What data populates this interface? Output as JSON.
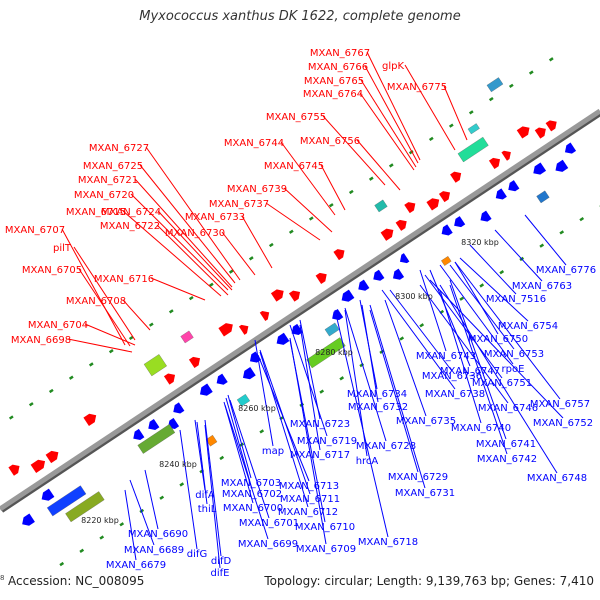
{
  "title": "Myxococcus xanthus DK 1622, complete genome",
  "footer": {
    "edge_mark": "8",
    "accession": "Accession: NC_008095",
    "summary": "Topology: circular; Length: 9,139,763 bp; Genes: 7,410"
  },
  "colors": {
    "forward_strand": "#ff0000",
    "reverse_strand": "#0000ff",
    "backbone": "#999999",
    "tick": "#228b22"
  },
  "scale_labels": [
    "8220 kbp",
    "8240 kbp",
    "8260 kbp",
    "8280 kbp",
    "8300 kbp",
    "8320 kbp"
  ],
  "forward_genes": [
    "MXAN_6767",
    "MXAN_6766",
    "MXAN_6765",
    "MXAN_6764",
    "glpK",
    "MXAN_6775",
    "MXAN_6755",
    "MXAN_6744",
    "MXAN_6756",
    "MXAN_6745",
    "MXAN_6727",
    "MXAN_6725",
    "MXAN_6721",
    "MXAN_6720",
    "MXAN_6715",
    "MXAN_6724",
    "MXAN_6722",
    "MXAN_6739",
    "MXAN_6737",
    "MXAN_6733",
    "MXAN_6730",
    "MXAN_6707",
    "pilT",
    "MXAN_6705",
    "MXAN_6716",
    "MXAN_6708",
    "MXAN_6704",
    "MXAN_6698"
  ],
  "reverse_genes": [
    "MXAN_6776",
    "MXAN_6763",
    "MXAN_7516",
    "MXAN_6754",
    "MXAN_6750",
    "MXAN_6753",
    "MXAN_6743",
    "MXAN_6747",
    "rpoE",
    "MXAN_6751",
    "MXAN_6736",
    "MXAN_6734",
    "MXAN_6738",
    "MXAN_6746",
    "MXAN_6757",
    "MXAN_6732",
    "MXAN_6735",
    "MXAN_6740",
    "MXAN_6752",
    "MXAN_6723",
    "MXAN_6741",
    "MXAN_6719",
    "MXAN_6728",
    "map",
    "MXAN_6717",
    "hrcA",
    "MXAN_6742",
    "MXAN_6729",
    "MXAN_6748",
    "MXAN_6713",
    "MXAN_6731",
    "MXAN_6703",
    "MXAN_6711",
    "MXAN_6702",
    "MXAN_6712",
    "MXAN_6700",
    "MXAN_6701",
    "MXAN_6710",
    "difA",
    "thiL",
    "MXAN_6699",
    "MXAN_6709",
    "MXAN_6718",
    "MXAN_6690",
    "difG",
    "MXAN_6689",
    "difD",
    "MXAN_6679",
    "difE"
  ]
}
